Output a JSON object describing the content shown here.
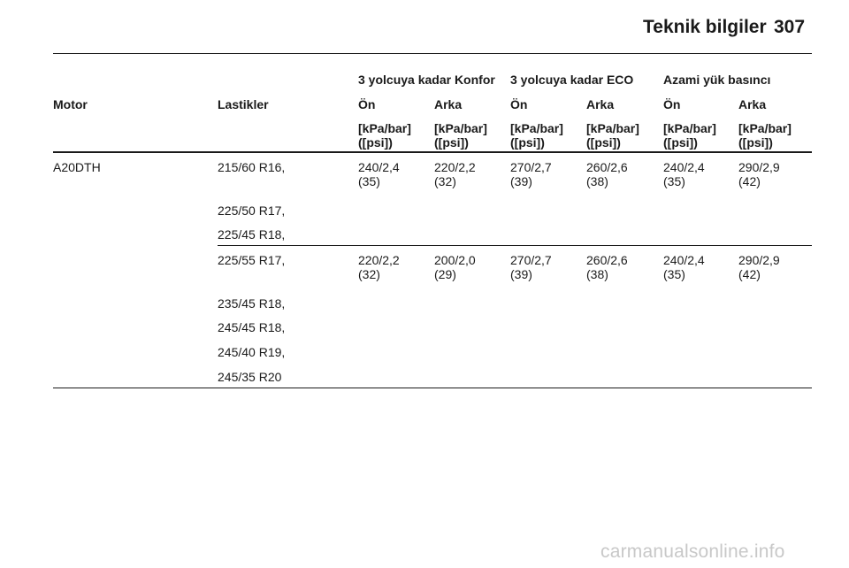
{
  "header": {
    "title": "Teknik bilgiler",
    "page_number": "307"
  },
  "table": {
    "group_headers": [
      "3 yolcuya kadar Konfor",
      "3 yolcuya kadar ECO",
      "Azami yük basıncı"
    ],
    "column_headers": {
      "motor": "Motor",
      "tires": "Lastikler",
      "positions": [
        "Ön",
        "Arka",
        "Ön",
        "Arka",
        "Ön",
        "Arka"
      ]
    },
    "units": {
      "line1": "[kPa/bar]",
      "line2": "([psi])"
    },
    "rows": [
      {
        "motor": "A20DTH",
        "tires": [
          "215/60 R16,",
          "225/50 R17,",
          "225/45 R18,"
        ],
        "values": [
          {
            "main": "240/2,4",
            "psi": "(35)"
          },
          {
            "main": "220/2,2",
            "psi": "(32)"
          },
          {
            "main": "270/2,7",
            "psi": "(39)"
          },
          {
            "main": "260/2,6",
            "psi": "(38)"
          },
          {
            "main": "240/2,4",
            "psi": "(35)"
          },
          {
            "main": "290/2,9",
            "psi": "(42)"
          }
        ]
      },
      {
        "motor": "",
        "tires": [
          "225/55 R17,",
          "235/45 R18,",
          "245/45 R18,",
          "245/40 R19,",
          "245/35 R20"
        ],
        "values": [
          {
            "main": "220/2,2",
            "psi": "(32)"
          },
          {
            "main": "200/2,0",
            "psi": "(29)"
          },
          {
            "main": "270/2,7",
            "psi": "(39)"
          },
          {
            "main": "260/2,6",
            "psi": "(38)"
          },
          {
            "main": "240/2,4",
            "psi": "(35)"
          },
          {
            "main": "290/2,9",
            "psi": "(42)"
          }
        ]
      }
    ]
  },
  "watermark": "carmanualsonline.info"
}
